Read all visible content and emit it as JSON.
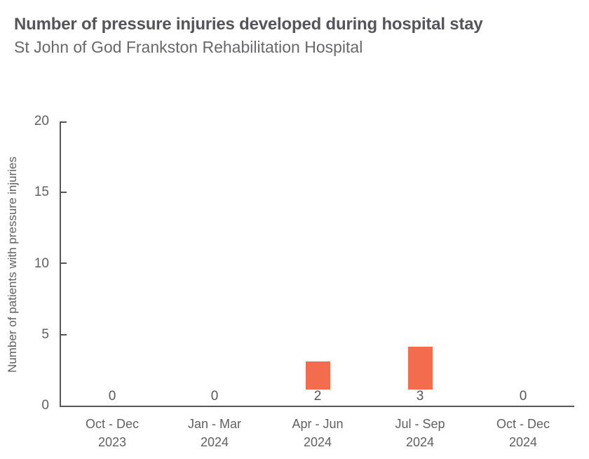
{
  "header": {
    "title": "Number of pressure injuries developed during hospital stay",
    "subtitle": "St John of God Frankston Rehabilitation Hospital"
  },
  "chart_data": {
    "type": "bar",
    "title": "Number of pressure injuries developed during hospital stay",
    "subtitle": "St John of God Frankston Rehabilitation Hospital",
    "xlabel": "",
    "ylabel": "Number of patients with pressure injuries",
    "categories": [
      "Oct - Dec 2023",
      "Jan - Mar 2024",
      "Apr - Jun 2024",
      "Jul - Sep 2024",
      "Oct - Dec 2024"
    ],
    "category_lines": [
      [
        "Oct - Dec",
        "2023"
      ],
      [
        "Jan - Mar",
        "2024"
      ],
      [
        "Apr - Jun",
        "2024"
      ],
      [
        "Jul - Sep",
        "2024"
      ],
      [
        "Oct - Dec",
        "2024"
      ]
    ],
    "values": [
      0,
      0,
      2,
      3,
      0
    ],
    "yticks": [
      0,
      5,
      10,
      15,
      20
    ],
    "ylim": [
      0,
      20
    ],
    "grid": false,
    "legend_position": "none",
    "bar_color": "#f36c4e"
  },
  "colors": {
    "bar": "#f36c4e",
    "title": "#54555a",
    "subtitle": "#67686c",
    "axis": "#55565a",
    "tick_label": "#5f6064",
    "background": "#ffffff"
  }
}
